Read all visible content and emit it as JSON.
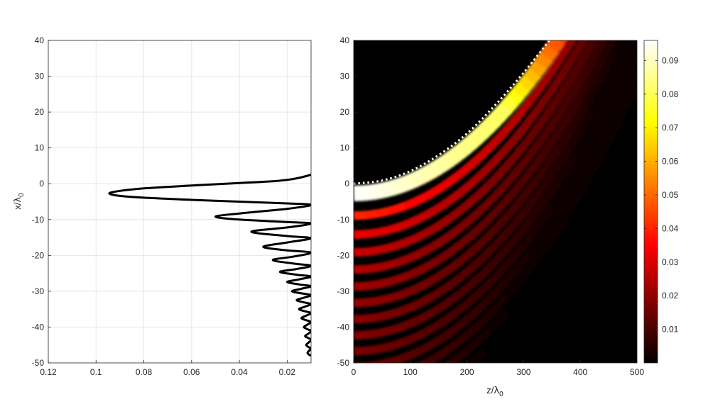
{
  "chart_data": [
    {
      "type": "line",
      "panel": "left",
      "xlabel": "",
      "ylabel": "x/λ0",
      "ylabel_main": "x/",
      "ylabel_symbol": "λ",
      "ylabel_sub": "0",
      "xlim": [
        0.12,
        0.01
      ],
      "x_reversed": true,
      "ylim": [
        -50,
        40
      ],
      "grid": true,
      "xticks": [
        0.12,
        0.1,
        0.08,
        0.06,
        0.04,
        0.02
      ],
      "xtick_labels": [
        "0.12",
        "0.1",
        "0.08",
        "0.06",
        "0.04",
        "0.02"
      ],
      "yticks": [
        40,
        30,
        20,
        10,
        0,
        -10,
        -20,
        -30,
        -40,
        -50
      ],
      "ytick_labels": [
        "40",
        "30",
        "20",
        "10",
        "0",
        "-10",
        "-20",
        "-30",
        "-40",
        "-50"
      ],
      "series": [
        {
          "color": "#000000",
          "points": [
            [
              0.01,
              2.5
            ],
            [
              0.016,
              1.5
            ],
            [
              0.024,
              0.8
            ],
            [
              0.04,
              0.2
            ],
            [
              0.06,
              -0.5
            ],
            [
              0.08,
              -1.3
            ],
            [
              0.09,
              -2.0
            ],
            [
              0.0945,
              -2.7
            ],
            [
              0.09,
              -3.4
            ],
            [
              0.08,
              -3.9
            ],
            [
              0.06,
              -4.5
            ],
            [
              0.04,
              -5.0
            ],
            [
              0.02,
              -5.5
            ],
            [
              0.01,
              -5.9
            ],
            [
              0.02,
              -7.0
            ],
            [
              0.04,
              -8.3
            ],
            [
              0.05,
              -9.2
            ],
            [
              0.04,
              -10.0
            ],
            [
              0.02,
              -10.7
            ],
            [
              0.01,
              -11.1
            ],
            [
              0.02,
              -12.2
            ],
            [
              0.035,
              -13.4
            ],
            [
              0.02,
              -14.6
            ],
            [
              0.01,
              -15.2
            ],
            [
              0.02,
              -16.4
            ],
            [
              0.03,
              -17.6
            ],
            [
              0.02,
              -18.6
            ],
            [
              0.01,
              -19.2
            ],
            [
              0.017,
              -20.3
            ],
            [
              0.026,
              -21.3
            ],
            [
              0.017,
              -22.3
            ],
            [
              0.01,
              -22.9
            ],
            [
              0.016,
              -23.8
            ],
            [
              0.023,
              -24.6
            ],
            [
              0.016,
              -25.4
            ],
            [
              0.01,
              -25.9
            ],
            [
              0.015,
              -26.7
            ],
            [
              0.02,
              -27.4
            ],
            [
              0.015,
              -28.1
            ],
            [
              0.01,
              -28.6
            ],
            [
              0.014,
              -29.3
            ],
            [
              0.018,
              -30.0
            ],
            [
              0.014,
              -30.6
            ],
            [
              0.01,
              -31.1
            ],
            [
              0.013,
              -31.8
            ],
            [
              0.016,
              -32.5
            ],
            [
              0.013,
              -33.1
            ],
            [
              0.01,
              -33.6
            ],
            [
              0.0125,
              -34.3
            ],
            [
              0.015,
              -35.0
            ],
            [
              0.0125,
              -35.6
            ],
            [
              0.01,
              -36.1
            ],
            [
              0.012,
              -36.8
            ],
            [
              0.014,
              -37.5
            ],
            [
              0.012,
              -38.1
            ],
            [
              0.01,
              -38.6
            ],
            [
              0.0115,
              -39.3
            ],
            [
              0.013,
              -40.0
            ],
            [
              0.0115,
              -40.6
            ],
            [
              0.01,
              -41.1
            ],
            [
              0.011,
              -41.8
            ],
            [
              0.0125,
              -42.5
            ],
            [
              0.011,
              -43.1
            ],
            [
              0.01,
              -43.6
            ],
            [
              0.011,
              -44.3
            ],
            [
              0.012,
              -45.0
            ],
            [
              0.011,
              -45.6
            ],
            [
              0.01,
              -46.0
            ],
            [
              0.0108,
              -46.6
            ],
            [
              0.0115,
              -47.2
            ],
            [
              0.0108,
              -47.7
            ],
            [
              0.01,
              -48.0
            ]
          ]
        }
      ]
    },
    {
      "type": "heatmap",
      "panel": "right",
      "xlabel": "z/λ0",
      "xlabel_main": "z/",
      "xlabel_symbol": "λ",
      "xlabel_sub": "0",
      "ylabel": "",
      "xlim": [
        0,
        500
      ],
      "ylim": [
        -50,
        40
      ],
      "colormap": "hot",
      "xticks": [
        0,
        100,
        200,
        300,
        400,
        500
      ],
      "xtick_labels": [
        "0",
        "100",
        "200",
        "300",
        "400",
        "500"
      ],
      "yticks": [
        40,
        30,
        20,
        10,
        0,
        -10,
        -20,
        -30,
        -40,
        -50
      ],
      "ytick_labels": [
        "40",
        "30",
        "20",
        "10",
        "0",
        "-10",
        "-20",
        "-30",
        "-40",
        "-50"
      ],
      "trajectory": {
        "style": "dotted",
        "color": "#ffffff",
        "points": [
          [
            0,
            0
          ],
          [
            50,
            0.9
          ],
          [
            100,
            3.5
          ],
          [
            150,
            8
          ],
          [
            200,
            14
          ],
          [
            250,
            22
          ],
          [
            300,
            31
          ],
          [
            350,
            41
          ],
          [
            385,
            49
          ]
        ]
      },
      "colorbar": {
        "range": [
          0,
          0.096
        ],
        "ticks": [
          0.01,
          0.02,
          0.03,
          0.04,
          0.05,
          0.06,
          0.07,
          0.08,
          0.09
        ],
        "tick_labels": [
          "0.01",
          "0.02",
          "0.03",
          "0.04",
          "0.05",
          "0.06",
          "0.07",
          "0.08",
          "0.09"
        ]
      }
    }
  ]
}
